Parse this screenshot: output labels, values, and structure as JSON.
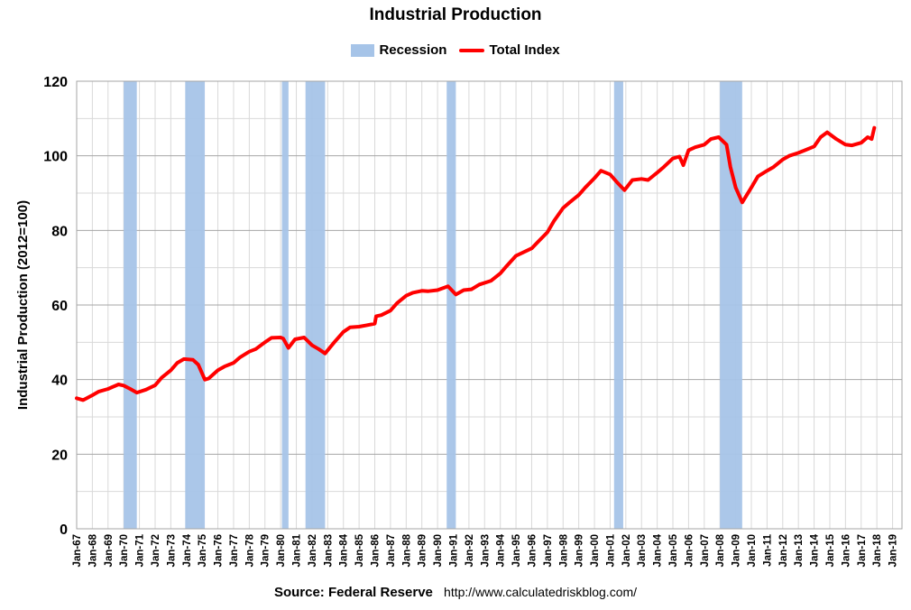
{
  "chart_data": {
    "type": "line",
    "title": "Industrial Production",
    "ylabel": "Industrial Production (2012=100)",
    "xlabel": "",
    "ylim": [
      0,
      120
    ],
    "yticks": [
      0,
      20,
      40,
      60,
      80,
      100,
      120
    ],
    "grid": true,
    "legend_position": "top",
    "legend": [
      "Recession",
      "Total Index"
    ],
    "x_tick_labels": [
      "Jan-67",
      "Jan-68",
      "Jan-69",
      "Jan-70",
      "Jan-71",
      "Jan-72",
      "Jan-73",
      "Jan-74",
      "Jan-75",
      "Jan-76",
      "Jan-77",
      "Jan-78",
      "Jan-79",
      "Jan-80",
      "Jan-81",
      "Jan-82",
      "Jan-83",
      "Jan-84",
      "Jan-85",
      "Jan-86",
      "Jan-87",
      "Jan-88",
      "Jan-89",
      "Jan-90",
      "Jan-91",
      "Jan-92",
      "Jan-93",
      "Jan-94",
      "Jan-95",
      "Jan-96",
      "Jan-97",
      "Jan-98",
      "Jan-99",
      "Jan-00",
      "Jan-01",
      "Jan-02",
      "Jan-03",
      "Jan-04",
      "Jan-05",
      "Jan-06",
      "Jan-07",
      "Jan-08",
      "Jan-09",
      "Jan-10",
      "Jan-11",
      "Jan-12",
      "Jan-13",
      "Jan-14",
      "Jan-15",
      "Jan-16",
      "Jan-17",
      "Jan-18",
      "Jan-19"
    ],
    "recessions": [
      {
        "start": "1970-01",
        "end": "1970-11"
      },
      {
        "start": "1973-12",
        "end": "1975-03"
      },
      {
        "start": "1980-02",
        "end": "1980-07"
      },
      {
        "start": "1981-08",
        "end": "1982-11"
      },
      {
        "start": "1990-08",
        "end": "1991-03"
      },
      {
        "start": "2001-04",
        "end": "2001-11"
      },
      {
        "start": "2008-01",
        "end": "2009-06"
      }
    ],
    "series": [
      {
        "name": "Total Index",
        "color": "#ff0000",
        "points": [
          [
            "1967-01",
            35.0
          ],
          [
            "1967-06",
            34.5
          ],
          [
            "1968-01",
            35.8
          ],
          [
            "1968-06",
            36.8
          ],
          [
            "1969-01",
            37.5
          ],
          [
            "1969-09",
            38.7
          ],
          [
            "1970-01",
            38.4
          ],
          [
            "1970-06",
            37.5
          ],
          [
            "1970-11",
            36.5
          ],
          [
            "1971-06",
            37.3
          ],
          [
            "1972-01",
            38.5
          ],
          [
            "1972-06",
            40.5
          ],
          [
            "1973-01",
            42.5
          ],
          [
            "1973-06",
            44.5
          ],
          [
            "1973-11",
            45.5
          ],
          [
            "1974-06",
            45.3
          ],
          [
            "1974-10",
            44.0
          ],
          [
            "1975-03",
            40.0
          ],
          [
            "1975-06",
            40.3
          ],
          [
            "1976-01",
            42.5
          ],
          [
            "1976-06",
            43.5
          ],
          [
            "1977-01",
            44.5
          ],
          [
            "1977-06",
            46.0
          ],
          [
            "1978-01",
            47.5
          ],
          [
            "1978-06",
            48.2
          ],
          [
            "1979-01",
            50.0
          ],
          [
            "1979-06",
            51.2
          ],
          [
            "1980-01",
            51.3
          ],
          [
            "1980-03",
            51.0
          ],
          [
            "1980-07",
            48.5
          ],
          [
            "1980-12",
            50.8
          ],
          [
            "1981-07",
            51.3
          ],
          [
            "1982-01",
            49.2
          ],
          [
            "1982-06",
            48.2
          ],
          [
            "1982-11",
            47.0
          ],
          [
            "1983-06",
            50.0
          ],
          [
            "1984-01",
            52.8
          ],
          [
            "1984-06",
            54.0
          ],
          [
            "1985-01",
            54.2
          ],
          [
            "1985-06",
            54.5
          ],
          [
            "1986-01",
            55.0
          ],
          [
            "1986-02",
            57.0
          ],
          [
            "1986-06",
            57.3
          ],
          [
            "1987-01",
            58.5
          ],
          [
            "1987-06",
            60.5
          ],
          [
            "1988-01",
            62.5
          ],
          [
            "1988-06",
            63.3
          ],
          [
            "1989-01",
            63.8
          ],
          [
            "1989-06",
            63.7
          ],
          [
            "1990-01",
            64.0
          ],
          [
            "1990-09",
            65.0
          ],
          [
            "1991-03",
            62.8
          ],
          [
            "1991-09",
            64.0
          ],
          [
            "1992-03",
            64.2
          ],
          [
            "1992-09",
            65.5
          ],
          [
            "1993-06",
            66.5
          ],
          [
            "1994-01",
            68.5
          ],
          [
            "1994-06",
            70.5
          ],
          [
            "1995-01",
            73.2
          ],
          [
            "1995-06",
            74.0
          ],
          [
            "1996-01",
            75.2
          ],
          [
            "1996-06",
            77.0
          ],
          [
            "1997-01",
            79.5
          ],
          [
            "1997-06",
            82.5
          ],
          [
            "1998-01",
            86.0
          ],
          [
            "1998-06",
            87.5
          ],
          [
            "1999-01",
            89.5
          ],
          [
            "1999-06",
            91.5
          ],
          [
            "2000-01",
            94.0
          ],
          [
            "2000-06",
            96.0
          ],
          [
            "2001-01",
            95.0
          ],
          [
            "2001-06",
            93.0
          ],
          [
            "2001-12",
            90.8
          ],
          [
            "2002-06",
            93.5
          ],
          [
            "2003-01",
            93.8
          ],
          [
            "2003-06",
            93.5
          ],
          [
            "2004-01",
            95.5
          ],
          [
            "2004-06",
            97.0
          ],
          [
            "2005-01",
            99.3
          ],
          [
            "2005-06",
            99.8
          ],
          [
            "2005-09",
            97.5
          ],
          [
            "2006-01",
            101.5
          ],
          [
            "2006-06",
            102.3
          ],
          [
            "2007-01",
            103.0
          ],
          [
            "2007-06",
            104.5
          ],
          [
            "2007-12",
            105.0
          ],
          [
            "2008-06",
            103.0
          ],
          [
            "2008-09",
            97.0
          ],
          [
            "2009-01",
            91.5
          ],
          [
            "2009-06",
            87.5
          ],
          [
            "2010-01",
            91.5
          ],
          [
            "2010-06",
            94.5
          ],
          [
            "2011-01",
            96.0
          ],
          [
            "2011-06",
            97.0
          ],
          [
            "2012-01",
            99.0
          ],
          [
            "2012-06",
            100.0
          ],
          [
            "2013-01",
            100.8
          ],
          [
            "2013-06",
            101.5
          ],
          [
            "2014-01",
            102.5
          ],
          [
            "2014-06",
            105.0
          ],
          [
            "2014-11",
            106.3
          ],
          [
            "2015-06",
            104.5
          ],
          [
            "2016-01",
            103.0
          ],
          [
            "2016-06",
            102.8
          ],
          [
            "2017-01",
            103.5
          ],
          [
            "2017-06",
            105.0
          ],
          [
            "2017-09",
            104.5
          ],
          [
            "2017-11",
            107.5
          ]
        ]
      }
    ]
  },
  "legend_items": {
    "recession_label": "Recession",
    "total_label": "Total Index",
    "recession_color": "#a6c4e8",
    "line_color": "#ff0000"
  },
  "source": {
    "label": "Source: Federal Reserve",
    "url": "http://www.calculatedriskblog.com/"
  }
}
